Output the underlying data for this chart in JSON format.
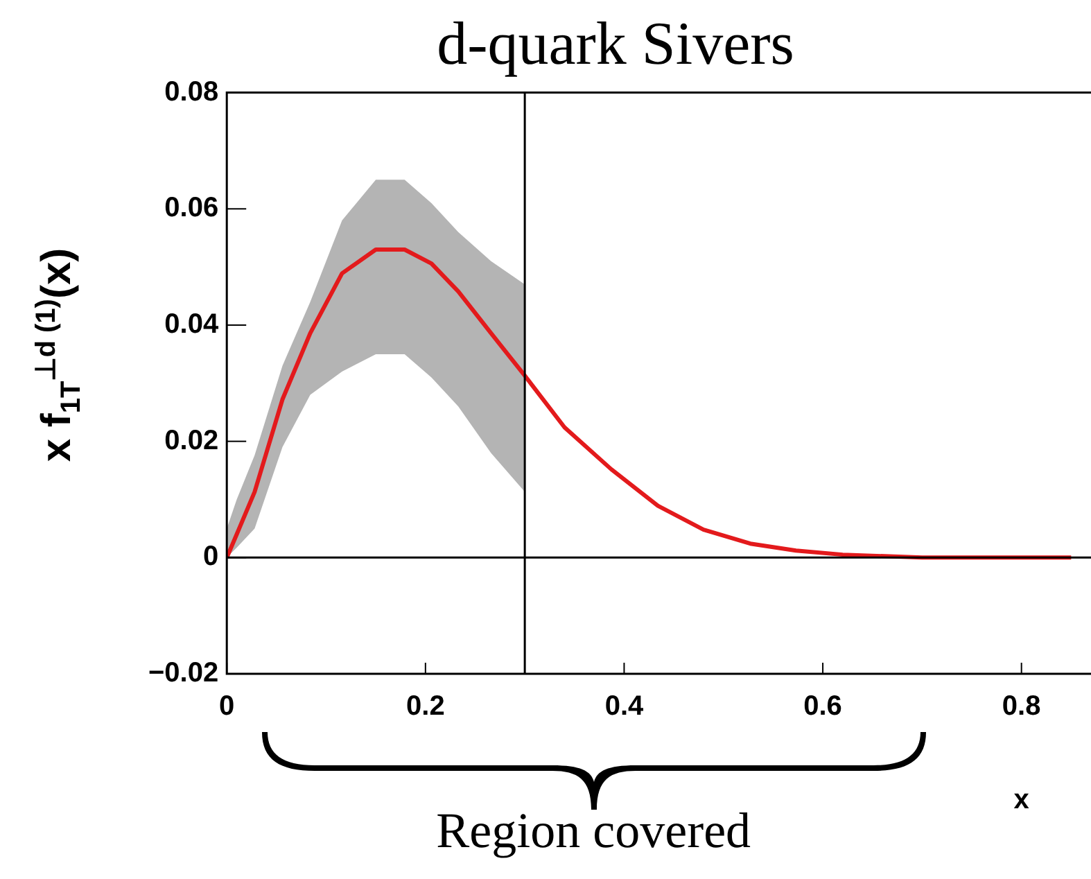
{
  "chart_data": {
    "type": "line",
    "title": "d-quark Sivers",
    "xlabel": "x",
    "ylabel": "x f$_{1T}$$^{⊥d (1)}$(x)",
    "xlim": [
      0,
      0.87
    ],
    "xticks": [
      0,
      0.2,
      0.4,
      0.6,
      0.8
    ],
    "ylim": [
      -0.02,
      0.08
    ],
    "yticks": [
      -0.02,
      0,
      0.02,
      0.04,
      0.06,
      0.08
    ],
    "grid": false,
    "legend": false,
    "marker": "none",
    "line_style": "solid",
    "series": [
      {
        "color": "#e31a1c",
        "x": [
          0,
          0.01,
          0.028,
          0.056,
          0.084,
          0.116,
          0.15,
          0.179,
          0.206,
          0.233,
          0.266,
          0.3,
          0.34,
          0.387,
          0.434,
          0.48,
          0.527,
          0.573,
          0.62,
          0.7,
          0.85
        ],
        "values": [
          0,
          0.004,
          0.0113,
          0.0272,
          0.0386,
          0.0489,
          0.053,
          0.053,
          0.0506,
          0.0458,
          0.0386,
          0.0313,
          0.0224,
          0.0152,
          0.0089,
          0.0048,
          0.0024,
          0.0012,
          0.0005,
          0,
          0
        ],
        "upper": [
          0.005,
          0.01,
          0.0176,
          0.033,
          0.044,
          0.058,
          0.065,
          0.065,
          0.061,
          0.056,
          0.051,
          0.047,
          null,
          null,
          null,
          null,
          null,
          null,
          null,
          null,
          null
        ],
        "lower": [
          0,
          0.0017,
          0.005,
          0.019,
          0.028,
          0.032,
          0.035,
          0.035,
          0.031,
          0.026,
          0.018,
          0.0113,
          null,
          null,
          null,
          null,
          null,
          null,
          null,
          null,
          null
        ]
      }
    ],
    "ref_lines": [
      {
        "axis": "x",
        "value": 0.3,
        "color": "#000000"
      },
      {
        "axis": "y",
        "value": 0,
        "color": "#000000"
      }
    ],
    "annotations": [
      "Region covered"
    ]
  }
}
